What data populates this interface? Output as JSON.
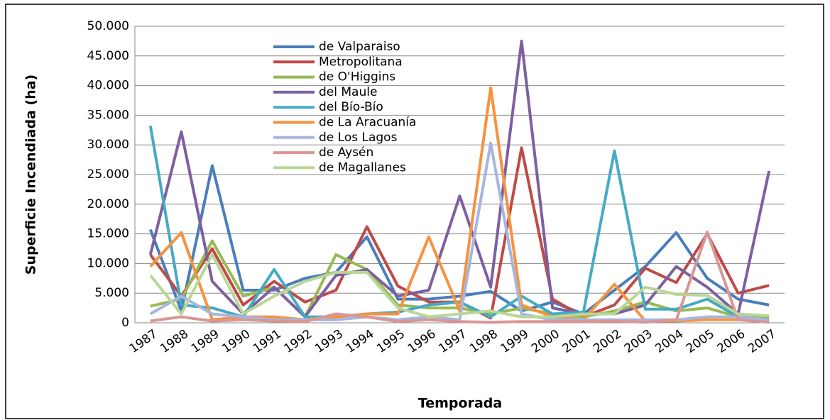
{
  "chart_data": {
    "type": "line",
    "ylabel": "Superficie Incendiada (ha)",
    "xlabel": "Temporada",
    "categories": [
      "1987",
      "1988",
      "1989",
      "1990",
      "1991",
      "1992",
      "1993",
      "1994",
      "1995",
      "1996",
      "1997",
      "1998",
      "1999",
      "2000",
      "2001",
      "2002",
      "2003",
      "2004",
      "2005",
      "2006",
      "2007"
    ],
    "ylim": [
      0,
      50000
    ],
    "yticks": [
      0,
      {
        "value": 5000,
        "label": "5.000"
      },
      {
        "value": 10000,
        "label": "10.000"
      },
      {
        "value": 15000,
        "label": "15.000"
      },
      {
        "value": 20000,
        "label": "20.000"
      },
      {
        "value": 25000,
        "label": "25.000"
      },
      {
        "value": 30000,
        "label": "30.000"
      },
      {
        "value": 35000,
        "label": "35.000"
      },
      {
        "value": 40000,
        "label": "40.000"
      },
      {
        "value": 45000,
        "label": "45.000"
      },
      {
        "value": 50000,
        "label": "50.000"
      }
    ],
    "grid": true,
    "legend": "upper left",
    "series": [
      {
        "name": "de Valparaiso",
        "color": "#4a7ebb",
        "values": [
          15700,
          2000,
          26500,
          5500,
          5500,
          7500,
          8500,
          14500,
          4000,
          4000,
          4500,
          5300,
          2000,
          3500,
          1500,
          5500,
          9500,
          15200,
          7500,
          4000,
          3000
        ]
      },
      {
        "name": "Metropolitana",
        "color": "#be4b48",
        "values": [
          11500,
          4500,
          12500,
          3000,
          7000,
          3500,
          5500,
          16200,
          6200,
          3500,
          3500,
          800,
          29500,
          4000,
          1000,
          3000,
          9200,
          6800,
          15000,
          5000,
          6300
        ]
      },
      {
        "name": "de O'Higgins",
        "color": "#98b954",
        "values": [
          2800,
          4000,
          13800,
          4500,
          6000,
          1000,
          11500,
          9000,
          3000,
          2500,
          2500,
          1500,
          2500,
          1500,
          1000,
          2000,
          3500,
          2000,
          2500,
          1000,
          1000
        ]
      },
      {
        "name": "del Maule",
        "color": "#7d60a0",
        "values": [
          11500,
          32200,
          7000,
          1500,
          6000,
          1000,
          8000,
          9000,
          4500,
          5500,
          21400,
          6000,
          47500,
          2500,
          1500,
          1500,
          3000,
          9500,
          6000,
          1500,
          25600
        ]
      },
      {
        "name": "del Bío-Bío",
        "color": "#46aac5",
        "values": [
          33200,
          3000,
          2500,
          1000,
          9000,
          1000,
          1000,
          1500,
          1800,
          3000,
          3500,
          1000,
          4500,
          1500,
          1800,
          29000,
          2300,
          2300,
          4000,
          1000,
          500
        ]
      },
      {
        "name": "de La Aracuanía",
        "color": "#f69240",
        "values": [
          9500,
          15200,
          500,
          1000,
          1000,
          500,
          1000,
          1500,
          1500,
          14500,
          2000,
          39600,
          3000,
          1000,
          500,
          6500,
          300,
          300,
          500,
          500,
          300
        ]
      },
      {
        "name": "de Los Lagos",
        "color": "#a5b6e0",
        "values": [
          1500,
          4500,
          1500,
          1000,
          500,
          500,
          500,
          1000,
          500,
          1000,
          500,
          30300,
          1500,
          500,
          500,
          500,
          500,
          500,
          1000,
          1000,
          500
        ]
      },
      {
        "name": "de Aysén",
        "color": "#d99694",
        "values": [
          300,
          1000,
          300,
          500,
          300,
          200,
          1500,
          1000,
          200,
          500,
          200,
          100,
          200,
          200,
          200,
          300,
          100,
          500,
          15300,
          500,
          100
        ]
      },
      {
        "name": "de Magallanes",
        "color": "#b9d696",
        "values": [
          8000,
          1500,
          11500,
          1500,
          4500,
          7000,
          8500,
          8500,
          2500,
          1000,
          1500,
          2000,
          1000,
          1000,
          1500,
          1500,
          6000,
          4800,
          4600,
          1500,
          1200
        ]
      }
    ]
  }
}
